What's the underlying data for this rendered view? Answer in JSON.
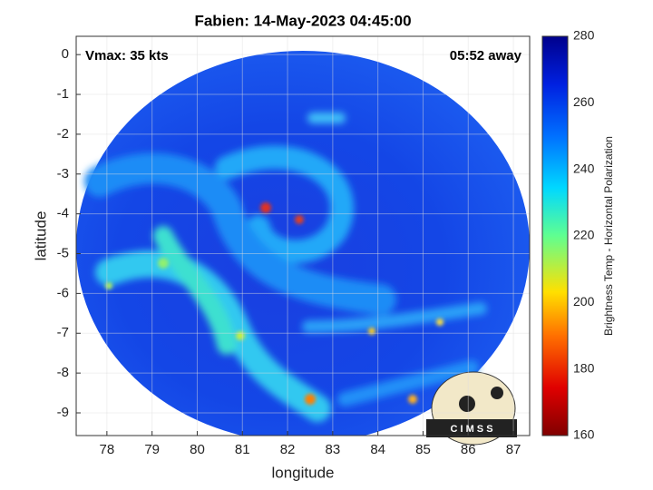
{
  "chart_data": {
    "type": "image",
    "title": "Fabien: 14-May-2023 04:45:00",
    "annotations": [
      "Vmax: 35 kts",
      "05:52 away"
    ],
    "x_label": "longitude",
    "y_label": "latitude",
    "xlim": [
      77.32,
      87.36
    ],
    "ylim": [
      -9.57,
      0.46
    ],
    "xticks": [
      78,
      79,
      80,
      81,
      82,
      83,
      84,
      85,
      86,
      87
    ],
    "yticks": [
      0,
      -1,
      -2,
      -3,
      -4,
      -5,
      -6,
      -7,
      -8,
      -9
    ],
    "grid": true,
    "colorbar": {
      "label": "Brightness Temp - Horizontal Polarization",
      "lim": [
        160,
        280
      ],
      "ticks": [
        160,
        180,
        200,
        220,
        240,
        260,
        280
      ]
    }
  },
  "logo": {
    "text": "C I M S S"
  }
}
